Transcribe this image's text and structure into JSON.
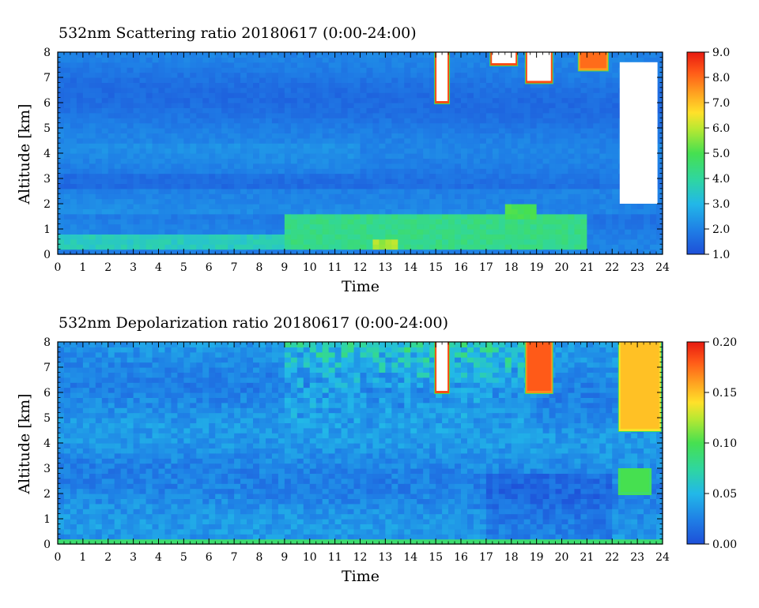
{
  "chart_data": [
    {
      "type": "heatmap",
      "title": "532nm Scattering ratio  20180617 (0:00-24:00)",
      "xlabel": "Time",
      "ylabel": "Altitude [km]",
      "xlim": [
        0,
        24
      ],
      "ylim": [
        0,
        8
      ],
      "x_ticks": [
        "0",
        "1",
        "2",
        "3",
        "4",
        "5",
        "6",
        "7",
        "8",
        "9",
        "10",
        "11",
        "12",
        "13",
        "14",
        "15",
        "16",
        "17",
        "18",
        "19",
        "20",
        "21",
        "22",
        "23",
        "24"
      ],
      "y_ticks": [
        "0",
        "1",
        "2",
        "3",
        "4",
        "5",
        "6",
        "7",
        "8"
      ],
      "colorbar": {
        "min": 1.0,
        "max": 9.0,
        "ticks": [
          "1.0",
          "2.0",
          "3.0",
          "4.0",
          "5.0",
          "6.0",
          "7.0",
          "8.0",
          "9.0"
        ]
      },
      "features": {
        "background_value": 1.8,
        "boundary_layer": [
          {
            "x": [
              0,
              9
            ],
            "y": [
              0.2,
              0.8
            ],
            "value": 3.6
          },
          {
            "x": [
              9,
              21
            ],
            "y": [
              0.2,
              1.6
            ],
            "value": 4.3
          },
          {
            "x": [
              12.5,
              13.5
            ],
            "y": [
              0.3,
              0.5
            ],
            "value": 5.8
          },
          {
            "x": [
              17.8,
              19.0
            ],
            "y": [
              1.5,
              2.0
            ],
            "value": 5.0
          }
        ],
        "clouds": [
          {
            "x": [
              15.0,
              15.5
            ],
            "y": [
              6.0,
              8.0
            ],
            "value": 9.0
          },
          {
            "x": [
              17.2,
              18.2
            ],
            "y": [
              7.5,
              8.0
            ],
            "value": 9.0
          },
          {
            "x": [
              18.6,
              19.6
            ],
            "y": [
              6.8,
              8.0
            ],
            "value": 9.0
          },
          {
            "x": [
              20.7,
              21.8
            ],
            "y": [
              7.3,
              8.0
            ],
            "value": 8.0
          }
        ],
        "no_data": [
          {
            "x": [
              22.3,
              23.8
            ],
            "y": [
              2.0,
              7.6
            ]
          }
        ]
      }
    },
    {
      "type": "heatmap",
      "title": "532nm Depolarization ratio  20180617 (0:00-24:00)",
      "xlabel": "Time",
      "ylabel": "Altitude [km]",
      "xlim": [
        0,
        24
      ],
      "ylim": [
        0,
        8
      ],
      "x_ticks": [
        "0",
        "1",
        "2",
        "3",
        "4",
        "5",
        "6",
        "7",
        "8",
        "9",
        "10",
        "11",
        "12",
        "13",
        "14",
        "15",
        "16",
        "17",
        "18",
        "19",
        "20",
        "21",
        "22",
        "23",
        "24"
      ],
      "y_ticks": [
        "0",
        "1",
        "2",
        "3",
        "4",
        "5",
        "6",
        "7",
        "8"
      ],
      "colorbar": {
        "min": 0.0,
        "max": 0.2,
        "ticks": [
          "0.00",
          "0.05",
          "0.10",
          "0.15",
          "0.20"
        ]
      },
      "features": {
        "background_value": 0.03,
        "noisy_upper_region": {
          "x": [
            9,
            19
          ],
          "y": [
            4.0,
            8.0
          ],
          "value": 0.06
        },
        "clouds": [
          {
            "x": [
              15.0,
              15.5
            ],
            "y": [
              6.0,
              8.0
            ],
            "value": 0.2
          },
          {
            "x": [
              18.6,
              19.6
            ],
            "y": [
              6.0,
              8.0
            ],
            "value": 0.18
          },
          {
            "x": [
              22.3,
              23.9
            ],
            "y": [
              4.5,
              8.0
            ],
            "value": 0.15
          },
          {
            "x": [
              22.3,
              23.5
            ],
            "y": [
              2.0,
              3.0
            ],
            "value": 0.1
          }
        ]
      }
    }
  ]
}
